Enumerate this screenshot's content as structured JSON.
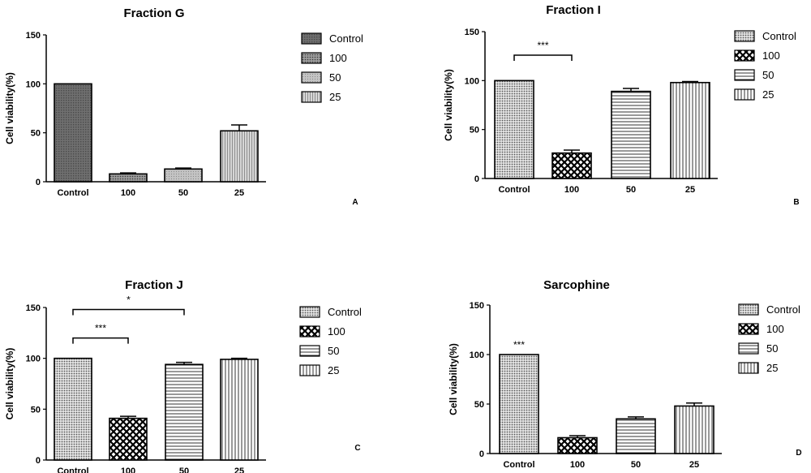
{
  "chart_data": [
    {
      "type": "bar",
      "title": "Fraction G",
      "panel_label": "A",
      "ylabel": "Cell viability(%)",
      "xlabel": "",
      "ylim": [
        0,
        150
      ],
      "yticks": [
        "0",
        "50",
        "100",
        "150"
      ],
      "categories": [
        "Control",
        "100",
        "50",
        "25"
      ],
      "values": [
        100,
        8,
        13,
        52
      ],
      "errors": [
        0,
        1,
        1,
        6
      ],
      "legend": [
        "Control",
        "100",
        "50",
        "25"
      ],
      "legend_position": "right",
      "fills": [
        "dark-dots",
        "fine-dots",
        "light-dots",
        "light-vertical"
      ],
      "significance": []
    },
    {
      "type": "bar",
      "title": "Fraction  I",
      "panel_label": "B",
      "ylabel": "Cell viability(%)",
      "xlabel": "",
      "ylim": [
        0,
        150
      ],
      "yticks": [
        "0",
        "50",
        "100",
        "150"
      ],
      "categories": [
        "Control",
        "100",
        "50",
        "25"
      ],
      "values": [
        100,
        26,
        89,
        98
      ],
      "errors": [
        0,
        3,
        3,
        1
      ],
      "legend": [
        "Control",
        "100",
        "50",
        "25"
      ],
      "legend_position": "right",
      "fills": [
        "dots",
        "checker",
        "horizontal",
        "vertical"
      ],
      "significance": [
        {
          "from": 0,
          "to": 1,
          "label": "***",
          "level": 126
        }
      ]
    },
    {
      "type": "bar",
      "title": "Fraction J",
      "panel_label": "C",
      "ylabel": "Cell viability(%)",
      "xlabel": "",
      "ylim": [
        0,
        150
      ],
      "yticks": [
        "0",
        "50",
        "100",
        "150"
      ],
      "categories": [
        "Control",
        "100",
        "50",
        "25"
      ],
      "values": [
        100,
        41,
        94,
        99
      ],
      "errors": [
        0,
        2,
        2,
        1
      ],
      "legend": [
        "Control",
        "100",
        "50",
        "25"
      ],
      "legend_position": "right",
      "fills": [
        "dots",
        "checker",
        "horizontal",
        "vertical"
      ],
      "significance": [
        {
          "from": 0,
          "to": 2,
          "label": "*",
          "level": 148
        },
        {
          "from": 0,
          "to": 1,
          "label": "***",
          "level": 120
        }
      ]
    },
    {
      "type": "bar",
      "title": "Sarcophine",
      "panel_label": "D",
      "ylabel": "Cell viability(%)",
      "xlabel": "",
      "ylim": [
        0,
        150
      ],
      "yticks": [
        "0",
        "50",
        "100",
        "150"
      ],
      "categories": [
        "Control",
        "100",
        "50",
        "25"
      ],
      "values": [
        100,
        16,
        35,
        48
      ],
      "errors": [
        0,
        2,
        2,
        3
      ],
      "legend": [
        "Control",
        "100",
        "50",
        "25"
      ],
      "legend_position": "right",
      "fills": [
        "dots",
        "checker",
        "horizontal",
        "vertical"
      ],
      "significance": [
        {
          "single": 0,
          "label": "***",
          "level": 110
        }
      ]
    }
  ]
}
